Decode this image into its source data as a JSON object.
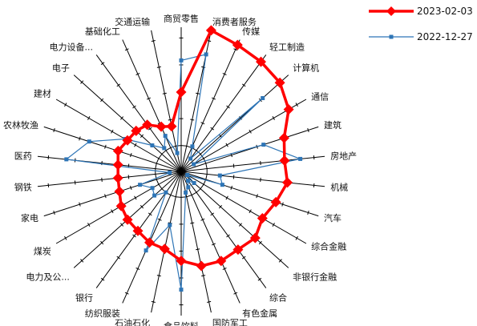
{
  "chart_data": {
    "type": "radar",
    "categories": [
      "商贸零售",
      "消费者服务",
      "传媒",
      "轻工制造",
      "计算机",
      "通信",
      "建筑",
      "房地产",
      "机械",
      "汽车",
      "综合金融",
      "非银行金融",
      "综合",
      "有色金属",
      "国防军工",
      "食品饮料",
      "石油石化",
      "纺织服装",
      "银行",
      "电力及公...",
      "煤炭",
      "家电",
      "钢铁",
      "医药",
      "农林牧渔",
      "建材",
      "电子",
      "电力设备...",
      "基础化工",
      "交通运输"
    ],
    "series": [
      {
        "name": "2023-02-03",
        "color": "#ff0000",
        "values": [
          0.55,
          1.0,
          0.96,
          0.94,
          0.92,
          0.86,
          0.75,
          0.72,
          0.74,
          0.69,
          0.65,
          0.69,
          0.67,
          0.68,
          0.67,
          0.62,
          0.55,
          0.54,
          0.51,
          0.5,
          0.48,
          0.45,
          0.44,
          0.44,
          0.46,
          0.43,
          0.42,
          0.4,
          0.34,
          0.32
        ]
      },
      {
        "name": "2022-12-27",
        "color": "#2e75b6",
        "values": [
          0.77,
          0.83,
          0.19,
          0.11,
          0.76,
          0.1,
          0.6,
          0.83,
          0.27,
          0.3,
          0.05,
          0.12,
          0.08,
          0.12,
          0.15,
          0.82,
          0.38,
          0.6,
          0.18,
          0.25,
          0.23,
          0.3,
          0.08,
          0.8,
          0.67,
          0.45,
          0.27,
          0.2,
          0.27,
          0.13
        ]
      }
    ],
    "legend": "top-right"
  }
}
